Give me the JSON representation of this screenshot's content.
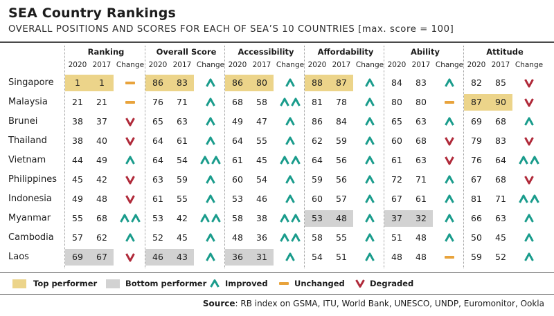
{
  "title": "SEA Country Rankings",
  "subtitle": "OVERALL POSITIONS AND SCORES FOR EACH OF SEA’S 10 COUNTRIES [max. score = 100]",
  "colors": {
    "top": "#ecd48a",
    "bottom": "#d2d2d2",
    "improved": "#1a9c8c",
    "unchanged": "#e8a33c",
    "degraded": "#b02a3a"
  },
  "chart_data": {
    "type": "table",
    "groups": [
      "Ranking",
      "Overall Score",
      "Accessibility",
      "Affordability",
      "Ability",
      "Attitude"
    ],
    "subheaders": [
      "2020",
      "2017",
      "Change"
    ],
    "rows": [
      {
        "country": "Singapore",
        "cells": [
          {
            "v2020": "1",
            "v2017": "1",
            "change": "unchanged",
            "h": "top"
          },
          {
            "v2020": "86",
            "v2017": "83",
            "change": "improved",
            "h": "top"
          },
          {
            "v2020": "86",
            "v2017": "80",
            "change": "improved",
            "h": "top"
          },
          {
            "v2020": "88",
            "v2017": "87",
            "change": "improved",
            "h": "top"
          },
          {
            "v2020": "84",
            "v2017": "83",
            "change": "improved",
            "h": ""
          },
          {
            "v2020": "82",
            "v2017": "85",
            "change": "degraded",
            "h": ""
          }
        ]
      },
      {
        "country": "Malaysia",
        "cells": [
          {
            "v2020": "21",
            "v2017": "21",
            "change": "unchanged",
            "h": ""
          },
          {
            "v2020": "76",
            "v2017": "71",
            "change": "improved",
            "h": ""
          },
          {
            "v2020": "68",
            "v2017": "58",
            "change": "improved2",
            "h": ""
          },
          {
            "v2020": "81",
            "v2017": "78",
            "change": "improved",
            "h": ""
          },
          {
            "v2020": "80",
            "v2017": "80",
            "change": "unchanged",
            "h": ""
          },
          {
            "v2020": "87",
            "v2017": "90",
            "change": "degraded",
            "h": "top"
          }
        ]
      },
      {
        "country": "Brunei",
        "cells": [
          {
            "v2020": "38",
            "v2017": "37",
            "change": "degraded",
            "h": ""
          },
          {
            "v2020": "65",
            "v2017": "63",
            "change": "improved",
            "h": ""
          },
          {
            "v2020": "49",
            "v2017": "47",
            "change": "improved",
            "h": ""
          },
          {
            "v2020": "86",
            "v2017": "84",
            "change": "improved",
            "h": ""
          },
          {
            "v2020": "65",
            "v2017": "63",
            "change": "improved",
            "h": ""
          },
          {
            "v2020": "69",
            "v2017": "68",
            "change": "improved",
            "h": ""
          }
        ]
      },
      {
        "country": "Thailand",
        "cells": [
          {
            "v2020": "38",
            "v2017": "40",
            "change": "degraded",
            "h": ""
          },
          {
            "v2020": "64",
            "v2017": "61",
            "change": "improved",
            "h": ""
          },
          {
            "v2020": "64",
            "v2017": "55",
            "change": "improved",
            "h": ""
          },
          {
            "v2020": "62",
            "v2017": "59",
            "change": "improved",
            "h": ""
          },
          {
            "v2020": "60",
            "v2017": "68",
            "change": "degraded",
            "h": ""
          },
          {
            "v2020": "79",
            "v2017": "83",
            "change": "degraded",
            "h": ""
          }
        ]
      },
      {
        "country": "Vietnam",
        "cells": [
          {
            "v2020": "44",
            "v2017": "49",
            "change": "improved",
            "h": ""
          },
          {
            "v2020": "64",
            "v2017": "54",
            "change": "improved2",
            "h": ""
          },
          {
            "v2020": "61",
            "v2017": "45",
            "change": "improved2",
            "h": ""
          },
          {
            "v2020": "64",
            "v2017": "56",
            "change": "improved",
            "h": ""
          },
          {
            "v2020": "61",
            "v2017": "63",
            "change": "degraded",
            "h": ""
          },
          {
            "v2020": "76",
            "v2017": "64",
            "change": "improved2",
            "h": ""
          }
        ]
      },
      {
        "country": "Philippines",
        "cells": [
          {
            "v2020": "45",
            "v2017": "42",
            "change": "degraded",
            "h": ""
          },
          {
            "v2020": "63",
            "v2017": "59",
            "change": "improved",
            "h": ""
          },
          {
            "v2020": "60",
            "v2017": "54",
            "change": "improved",
            "h": ""
          },
          {
            "v2020": "59",
            "v2017": "56",
            "change": "improved",
            "h": ""
          },
          {
            "v2020": "72",
            "v2017": "71",
            "change": "improved",
            "h": ""
          },
          {
            "v2020": "67",
            "v2017": "68",
            "change": "degraded",
            "h": ""
          }
        ]
      },
      {
        "country": "Indonesia",
        "cells": [
          {
            "v2020": "49",
            "v2017": "48",
            "change": "degraded",
            "h": ""
          },
          {
            "v2020": "61",
            "v2017": "55",
            "change": "improved",
            "h": ""
          },
          {
            "v2020": "53",
            "v2017": "46",
            "change": "improved",
            "h": ""
          },
          {
            "v2020": "60",
            "v2017": "57",
            "change": "improved",
            "h": ""
          },
          {
            "v2020": "67",
            "v2017": "61",
            "change": "improved",
            "h": ""
          },
          {
            "v2020": "81",
            "v2017": "71",
            "change": "improved2",
            "h": ""
          }
        ]
      },
      {
        "country": "Myanmar",
        "cells": [
          {
            "v2020": "55",
            "v2017": "68",
            "change": "improved2",
            "h": ""
          },
          {
            "v2020": "53",
            "v2017": "42",
            "change": "improved2",
            "h": ""
          },
          {
            "v2020": "58",
            "v2017": "38",
            "change": "improved2",
            "h": ""
          },
          {
            "v2020": "53",
            "v2017": "48",
            "change": "improved",
            "h": "bottom"
          },
          {
            "v2020": "37",
            "v2017": "32",
            "change": "improved",
            "h": "bottom"
          },
          {
            "v2020": "66",
            "v2017": "63",
            "change": "improved",
            "h": ""
          }
        ]
      },
      {
        "country": "Cambodia",
        "cells": [
          {
            "v2020": "57",
            "v2017": "62",
            "change": "improved",
            "h": ""
          },
          {
            "v2020": "52",
            "v2017": "45",
            "change": "improved",
            "h": ""
          },
          {
            "v2020": "48",
            "v2017": "36",
            "change": "improved2",
            "h": ""
          },
          {
            "v2020": "58",
            "v2017": "55",
            "change": "improved",
            "h": ""
          },
          {
            "v2020": "51",
            "v2017": "48",
            "change": "improved",
            "h": ""
          },
          {
            "v2020": "50",
            "v2017": "45",
            "change": "improved",
            "h": ""
          }
        ]
      },
      {
        "country": "Laos",
        "cells": [
          {
            "v2020": "69",
            "v2017": "67",
            "change": "degraded",
            "h": "bottom"
          },
          {
            "v2020": "46",
            "v2017": "43",
            "change": "improved",
            "h": "bottom"
          },
          {
            "v2020": "36",
            "v2017": "31",
            "change": "improved",
            "h": "bottom"
          },
          {
            "v2020": "54",
            "v2017": "51",
            "change": "improved",
            "h": ""
          },
          {
            "v2020": "48",
            "v2017": "48",
            "change": "unchanged",
            "h": ""
          },
          {
            "v2020": "59",
            "v2017": "52",
            "change": "improved",
            "h": ""
          }
        ]
      }
    ]
  },
  "legend": {
    "top": "Top performer",
    "bottom": "Bottom performer",
    "improved": "Improved",
    "unchanged": "Unchanged",
    "degraded": "Degraded"
  },
  "source": {
    "label": "Source",
    "text": ": RB index on GSMA, ITU, World Bank, UNESCO, UNDP, Euromonitor, Ookla"
  }
}
